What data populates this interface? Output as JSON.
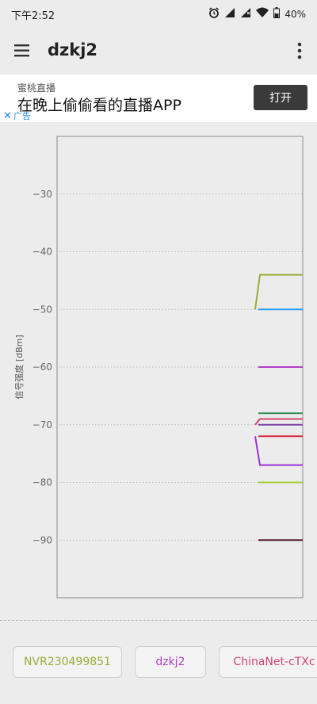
{
  "status_bar": {
    "time": "下午2:52",
    "battery": "40%",
    "icons": [
      "alarm-icon",
      "signal-icon",
      "signal-no-data-icon",
      "wifi-icon",
      "battery-icon"
    ]
  },
  "app_bar": {
    "title": "dzkj2",
    "icons": [
      "menu-icon",
      "more-vert-icon"
    ]
  },
  "ad": {
    "brand": "蜜桃直播",
    "headline": "在晚上偷偷看的直播APP",
    "button_label": "打开",
    "close_label": "广告",
    "close_symbol": "✕"
  },
  "chart_data": {
    "type": "line",
    "ylabel": "信号强度 [dBm]",
    "yticks": [
      -30,
      -40,
      -50,
      -60,
      -70,
      -80,
      -90
    ],
    "ylim": [
      -100,
      -20
    ],
    "grid": true,
    "series": [
      {
        "color": "#9aab3a",
        "values": [
          -50,
          -44
        ]
      },
      {
        "color": "#2a9df4",
        "values": [
          -50
        ]
      },
      {
        "color": "#b33fc9",
        "values": [
          -60
        ]
      },
      {
        "color": "#2e8b57",
        "values": [
          -68
        ]
      },
      {
        "color": "#d0466f",
        "values": [
          -70,
          -69
        ]
      },
      {
        "color": "#7e3fa8",
        "values": [
          -70
        ]
      },
      {
        "color": "#d8263c",
        "values": [
          -72
        ]
      },
      {
        "color": "#9a33d6",
        "values": [
          -72,
          -77
        ]
      },
      {
        "color": "#a9cc3c",
        "values": [
          -80
        ]
      },
      {
        "color": "#5a1c30",
        "values": [
          -90
        ]
      }
    ]
  },
  "ssid_chips": [
    {
      "label": "NVR230499851",
      "color": "#9aab3a"
    },
    {
      "label": "dzkj2",
      "color": "#b33fc9"
    },
    {
      "label": "ChinaNet-cTXc",
      "color": "#d0466f"
    }
  ]
}
